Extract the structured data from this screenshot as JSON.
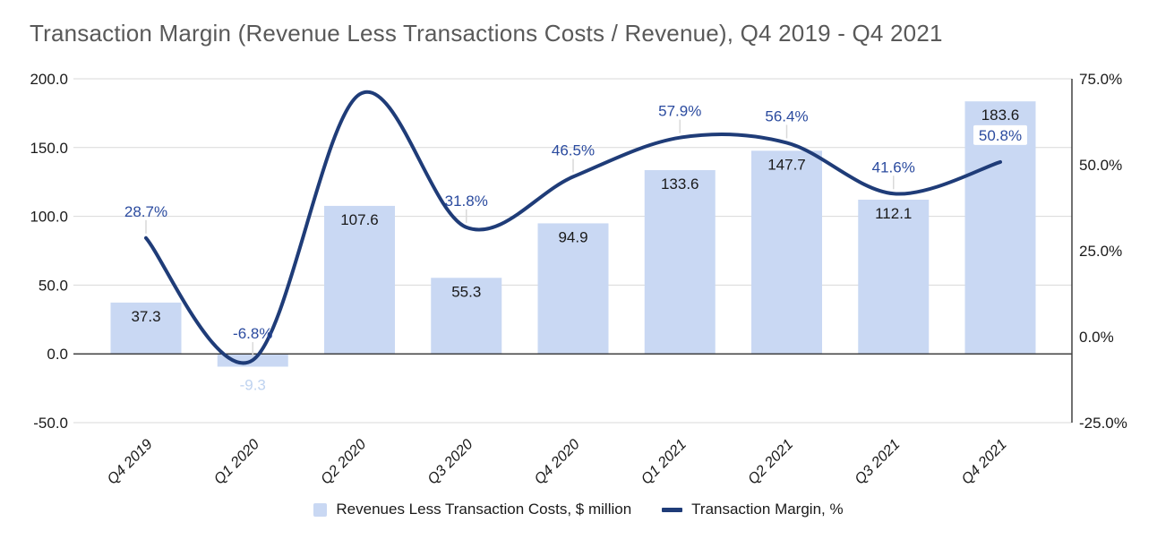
{
  "title": "Transaction Margin (Revenue Less Transactions Costs / Revenue), Q4 2019 - Q4 2021",
  "legend": [
    {
      "label": "Revenues Less Transaction Costs, $ million",
      "swatch": "bar-square"
    },
    {
      "label": "Transaction Margin, %",
      "swatch": "line-dash"
    }
  ],
  "colors": {
    "bar_fill": "#c9d8f3",
    "line": "#1f3c78",
    "margin_label": "#2b4b9f",
    "bar_label": "#1a1a1a",
    "negative_bar_label": "#bfd3f0",
    "label_box_fill": "#ffffff",
    "title_text": "#595959",
    "gridline": "#d9d9d9",
    "axis_line": "#404040",
    "tick_text": "#1a1a1a",
    "leader_line": "#d9d9d9"
  },
  "chart_data": {
    "type": "bar+line combo",
    "title": "Transaction Margin (Revenue Less Transactions Costs / Revenue), Q4 2019 - Q4 2021",
    "categories": [
      "Q4 2019",
      "Q1 2020",
      "Q2 2020",
      "Q3 2020",
      "Q4 2020",
      "Q1 2021",
      "Q2 2021",
      "Q3 2021",
      "Q4 2021"
    ],
    "series": [
      {
        "name": "Revenues Less Transaction Costs, $ million",
        "type": "bar",
        "axis": "left",
        "values": [
          37.3,
          -9.3,
          107.6,
          55.3,
          94.9,
          133.6,
          147.7,
          112.1,
          183.6
        ],
        "labels": [
          "37.3",
          "-9.3",
          "107.6",
          "55.3",
          "94.9",
          "133.6",
          "147.7",
          "112.1",
          "183.6"
        ]
      },
      {
        "name": "Transaction Margin, %",
        "type": "line",
        "axis": "right",
        "values": [
          28.7,
          -6.8,
          70.5,
          31.8,
          46.5,
          57.9,
          56.4,
          41.6,
          50.8
        ],
        "labels": [
          "28.7%",
          "-6.8%",
          "",
          "31.8%",
          "46.5%",
          "57.9%",
          "56.4%",
          "41.6%",
          "50.8%"
        ],
        "boxed_labels": [
          false,
          false,
          false,
          false,
          false,
          false,
          false,
          false,
          true
        ]
      }
    ],
    "left_axis": {
      "ticks": [
        {
          "label": "200.0",
          "value": 200
        },
        {
          "label": "150.0",
          "value": 150
        },
        {
          "label": "100.0",
          "value": 100
        },
        {
          "label": "50.0",
          "value": 50
        },
        {
          "label": "0.0",
          "value": 0
        },
        {
          "label": "-50.0",
          "value": -50
        }
      ],
      "min": -50,
      "max": 200
    },
    "right_axis": {
      "ticks": [
        {
          "label": "75.0%",
          "value": 75
        },
        {
          "label": "50.0%",
          "value": 50
        },
        {
          "label": "25.0%",
          "value": 25
        },
        {
          "label": "0.0%",
          "value": 0
        },
        {
          "label": "-25.0%",
          "value": -25
        }
      ],
      "min": -25,
      "max": 75
    },
    "grid": true,
    "legend_position": "bottom-center"
  }
}
